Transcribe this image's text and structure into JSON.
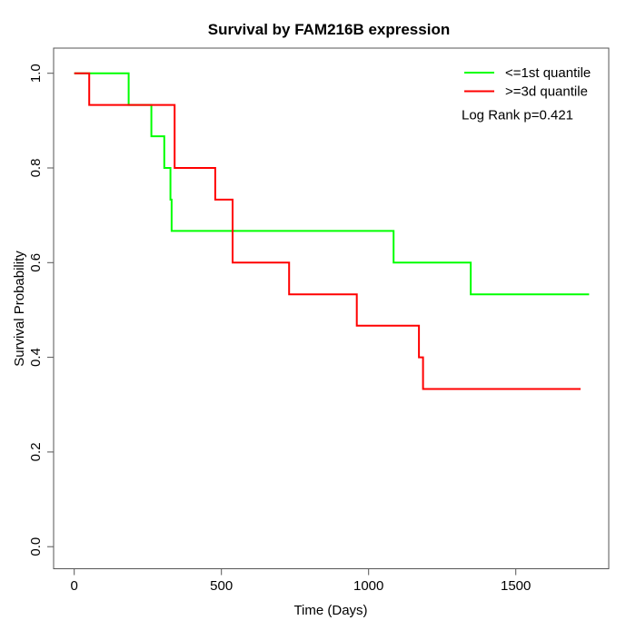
{
  "chart_data": {
    "type": "line",
    "subtype": "kaplan-meier-step",
    "title": "Survival by FAM216B expression",
    "xlabel": "Time (Days)",
    "ylabel": "Survival Probability",
    "xlim": [
      0,
      1815
    ],
    "ylim": [
      0.0,
      1.0
    ],
    "x_ticks": [
      0,
      500,
      1000,
      1500
    ],
    "y_ticks": [
      0.0,
      0.2,
      0.4,
      0.6,
      0.8,
      1.0
    ],
    "grid": false,
    "legend_position": "top-right",
    "annotation": "Log Rank p=0.421",
    "series": [
      {
        "name": "<=1st quantile",
        "color": "#00ff00",
        "steps": [
          [
            0,
            1.0
          ],
          [
            185,
            0.933
          ],
          [
            262,
            0.867
          ],
          [
            306,
            0.8
          ],
          [
            327,
            0.733
          ],
          [
            331,
            0.667
          ],
          [
            1085,
            0.6
          ],
          [
            1347,
            0.533
          ]
        ],
        "end_time": 1749
      },
      {
        "name": ">=3d quantile",
        "color": "#ff0000",
        "steps": [
          [
            0,
            1.0
          ],
          [
            51,
            0.933
          ],
          [
            341,
            0.8
          ],
          [
            479,
            0.733
          ],
          [
            538,
            0.6
          ],
          [
            730,
            0.533
          ],
          [
            960,
            0.467
          ],
          [
            1171,
            0.4
          ],
          [
            1185,
            0.333
          ]
        ],
        "end_time": 1720
      }
    ]
  }
}
